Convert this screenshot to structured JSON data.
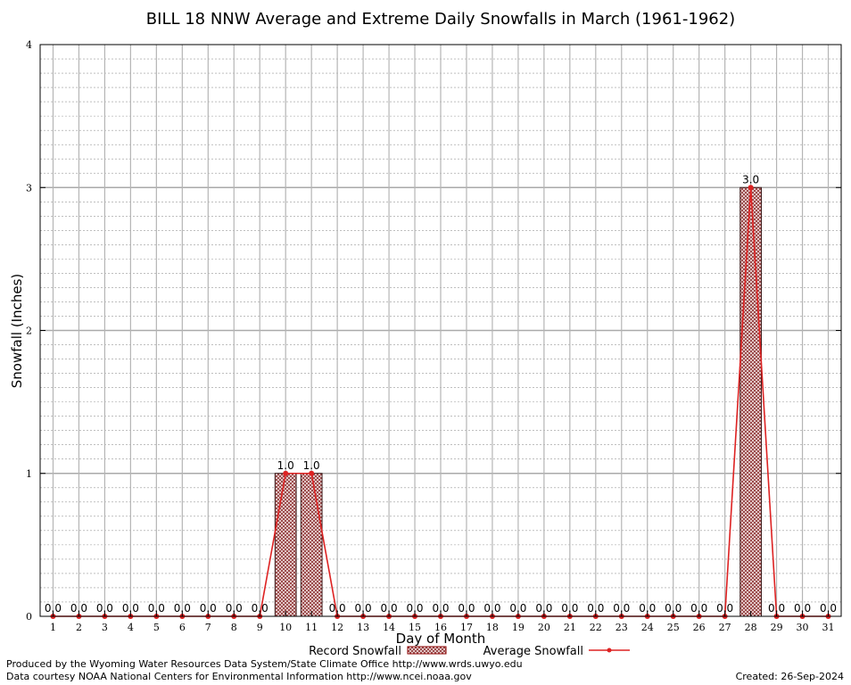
{
  "chart_data": {
    "type": "bar",
    "title": "BILL 18 NNW Average and Extreme Daily Snowfalls in March (1961-1962)",
    "xlabel": "Day of Month",
    "ylabel": "Snowfall (Inches)",
    "ylim": [
      0,
      4
    ],
    "yticks": [
      "0",
      "1",
      "2",
      "3",
      "4"
    ],
    "categories": [
      "1",
      "2",
      "3",
      "4",
      "5",
      "6",
      "7",
      "8",
      "9",
      "10",
      "11",
      "12",
      "13",
      "14",
      "15",
      "16",
      "17",
      "18",
      "19",
      "20",
      "21",
      "22",
      "23",
      "24",
      "25",
      "26",
      "27",
      "28",
      "29",
      "30",
      "31"
    ],
    "grid": true,
    "legend_position": "bottom",
    "series": [
      {
        "name": "Record Snowfall",
        "type": "bar",
        "color": "#8b0000",
        "values": [
          0,
          0,
          0,
          0,
          0,
          0,
          0,
          0,
          0,
          1,
          1,
          0,
          0,
          0,
          0,
          0,
          0,
          0,
          0,
          0,
          0,
          0,
          0,
          0,
          0,
          0,
          0,
          3,
          0,
          0,
          0
        ]
      },
      {
        "name": "Average Snowfall",
        "type": "line",
        "color": "#dd2222",
        "values": [
          0,
          0,
          0,
          0,
          0,
          0,
          0,
          0,
          0,
          1,
          1,
          0,
          0,
          0,
          0,
          0,
          0,
          0,
          0,
          0,
          0,
          0,
          0,
          0,
          0,
          0,
          0,
          3,
          0,
          0,
          0
        ]
      }
    ],
    "data_labels": [
      "0.0",
      "0.0",
      "0.0",
      "0.0",
      "0.0",
      "0.0",
      "0.0",
      "0.0",
      "0.0",
      "1.0",
      "1.0",
      "0.0",
      "0.0",
      "0.0",
      "0.0",
      "0.0",
      "0.0",
      "0.0",
      "0.0",
      "0.0",
      "0.0",
      "0.0",
      "0.0",
      "0.0",
      "0.0",
      "0.0",
      "0.0",
      "3.0",
      "0.0",
      "0.0",
      "0.0"
    ]
  },
  "footer": {
    "produced_by": "Produced by the Wyoming Water Resources Data System/State Climate Office http://www.wrds.uwyo.edu",
    "courtesy": "Data courtesy NOAA National Centers for Environmental Information http://www.ncei.noaa.gov",
    "created": "Created:  26-Sep-2024"
  }
}
